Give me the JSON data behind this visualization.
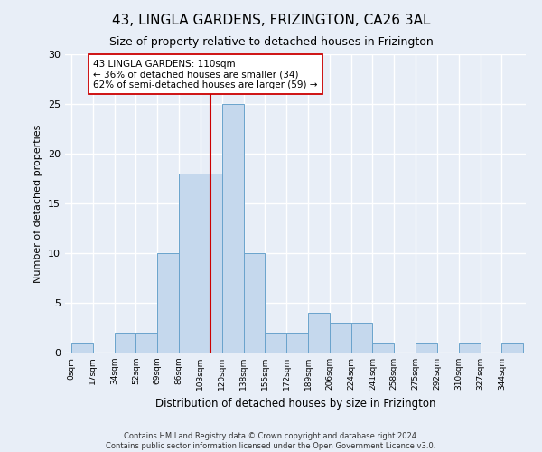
{
  "title": "43, LINGLA GARDENS, FRIZINGTON, CA26 3AL",
  "subtitle": "Size of property relative to detached houses in Frizington",
  "xlabel": "Distribution of detached houses by size in Frizington",
  "ylabel": "Number of detached properties",
  "bin_labels": [
    "0sqm",
    "17sqm",
    "34sqm",
    "52sqm",
    "69sqm",
    "86sqm",
    "103sqm",
    "120sqm",
    "138sqm",
    "155sqm",
    "172sqm",
    "189sqm",
    "206sqm",
    "224sqm",
    "241sqm",
    "258sqm",
    "275sqm",
    "292sqm",
    "310sqm",
    "327sqm",
    "344sqm"
  ],
  "bar_heights": [
    1,
    0,
    2,
    2,
    10,
    18,
    18,
    25,
    10,
    2,
    2,
    4,
    3,
    3,
    1,
    0,
    1,
    0,
    1,
    0,
    1
  ],
  "bar_color": "#c5d8ed",
  "bar_edge_color": "#6aa3cc",
  "vline_x": 110,
  "vline_color": "#cc0000",
  "annotation_text": "43 LINGLA GARDENS: 110sqm\n← 36% of detached houses are smaller (34)\n62% of semi-detached houses are larger (59) →",
  "annotation_box_color": "#ffffff",
  "annotation_box_edge": "#cc0000",
  "ylim": [
    0,
    30
  ],
  "yticks": [
    0,
    5,
    10,
    15,
    20,
    25,
    30
  ],
  "footer_line1": "Contains HM Land Registry data © Crown copyright and database right 2024.",
  "footer_line2": "Contains public sector information licensed under the Open Government Licence v3.0.",
  "background_color": "#e8eef7",
  "grid_color": "#ffffff",
  "bin_width": 17
}
